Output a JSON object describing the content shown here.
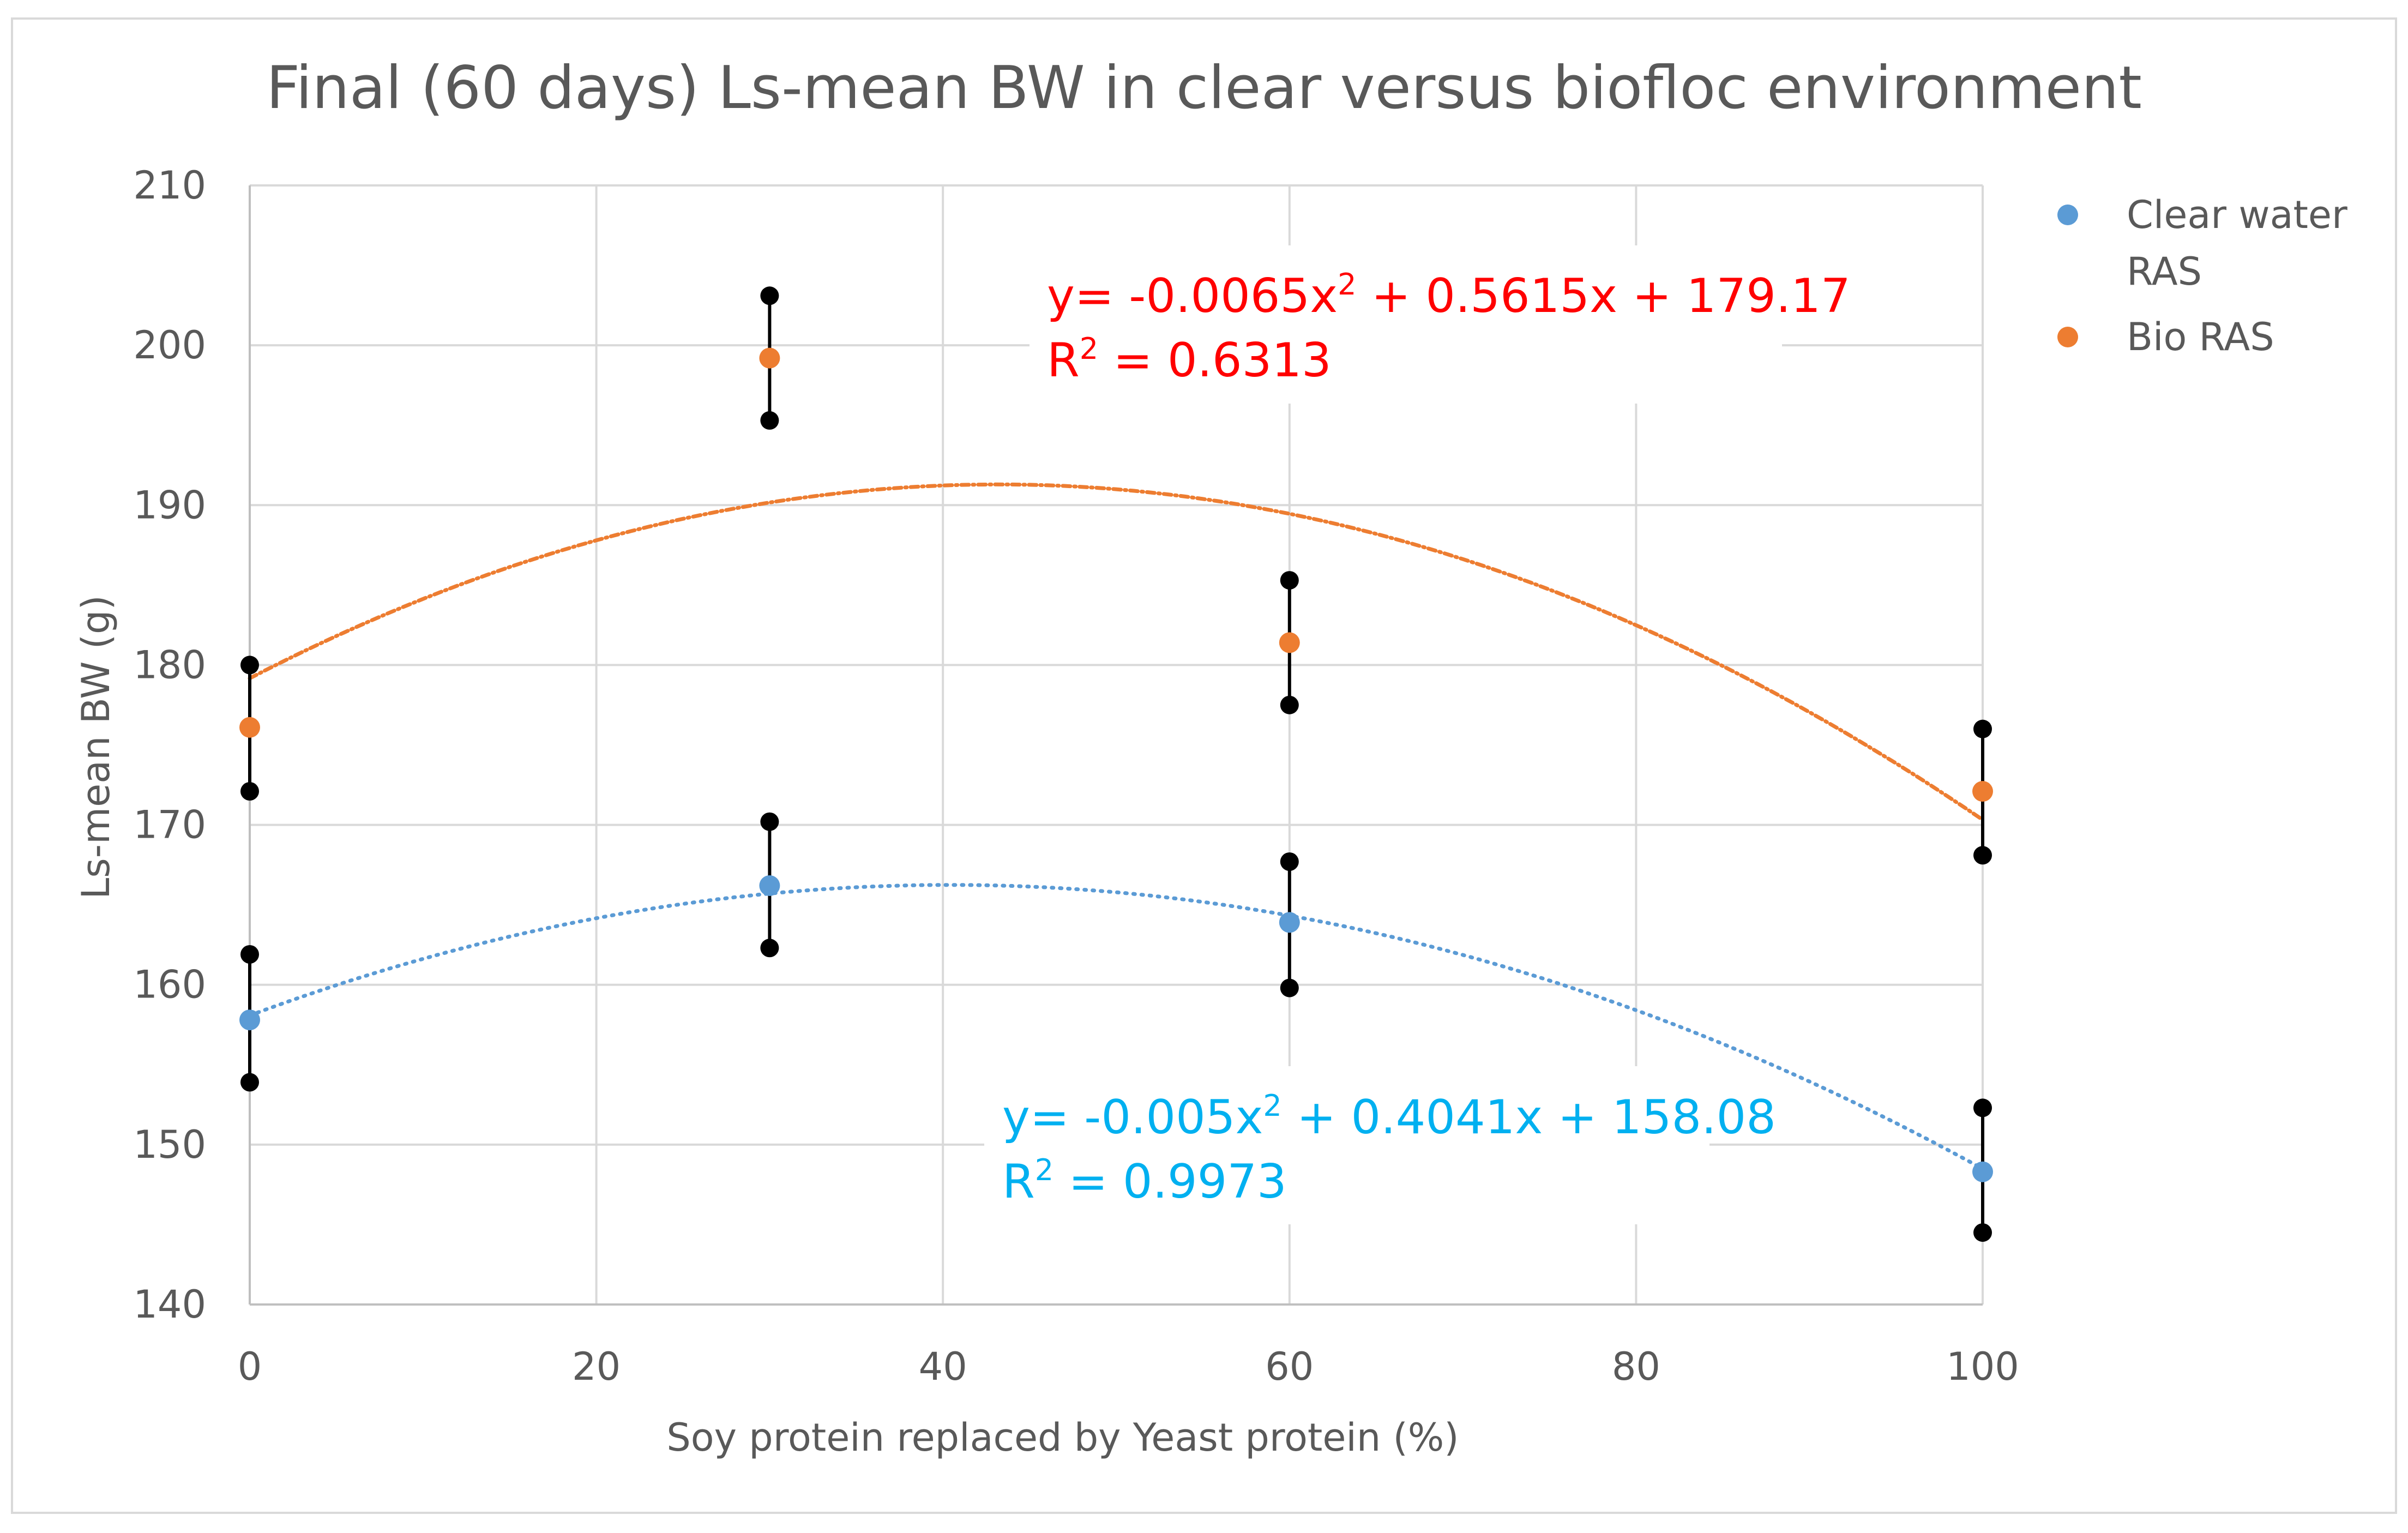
{
  "chart_data": {
    "type": "scatter",
    "title": "Final (60 days) Ls-mean BW in clear versus biofloc environment",
    "xlabel": "Soy protein replaced by Yeast protein (%)",
    "ylabel": "Ls-mean BW (g)",
    "xlim": [
      0,
      100
    ],
    "ylim": [
      140,
      210
    ],
    "xticks": [
      0,
      20,
      40,
      60,
      80,
      100
    ],
    "yticks": [
      140,
      150,
      160,
      170,
      180,
      190,
      200,
      210
    ],
    "xtick_labels": [
      "0",
      "20",
      "40",
      "60",
      "80",
      "100"
    ],
    "ytick_labels": [
      "140",
      "150",
      "160",
      "170",
      "180",
      "190",
      "200",
      "210"
    ],
    "grid": true,
    "legend_position": "top-right",
    "series": [
      {
        "name": "Clear water RAS",
        "legend_line1": "Clear water",
        "legend_line2": "RAS",
        "color": "#5b9bd5",
        "x": [
          0,
          30,
          60,
          100
        ],
        "y": [
          157.8,
          166.2,
          163.9,
          148.3
        ],
        "error_low": [
          153.9,
          162.3,
          159.8,
          144.5
        ],
        "error_high": [
          161.9,
          170.2,
          167.7,
          152.3
        ],
        "trendline": {
          "a": -0.005,
          "b": 0.4041,
          "c": 158.08,
          "color": "#5b9bd5"
        },
        "equation": {
          "prefix": "y= -0.005x",
          "sup": "2",
          "suffix": " + 0.4041x + 158.08",
          "r_prefix": "R",
          "r_sup": "2",
          "r_suffix": " = 0.9973",
          "color": "#00b0f0"
        }
      },
      {
        "name": "Bio RAS",
        "legend_line1": "Bio RAS",
        "legend_line2": "",
        "color": "#ed7d31",
        "x": [
          0,
          30,
          60,
          100
        ],
        "y": [
          176.1,
          199.2,
          181.4,
          172.1
        ],
        "error_low": [
          172.1,
          195.3,
          177.5,
          168.1
        ],
        "error_high": [
          180.0,
          203.1,
          185.3,
          176.0
        ],
        "trendline": {
          "a": -0.0065,
          "b": 0.5615,
          "c": 179.17,
          "color": "#ed7d31"
        },
        "equation": {
          "prefix": "y= -0.0065x",
          "sup": "2",
          "suffix": " + 0.5615x + 179.17",
          "r_prefix": "R",
          "r_sup": "2",
          "r_suffix": " = 0.6313",
          "color": "#ff0000"
        }
      }
    ]
  }
}
